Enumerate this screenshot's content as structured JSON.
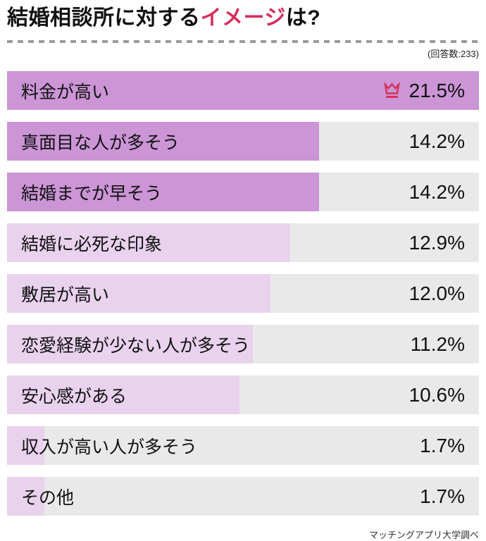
{
  "header": {
    "title_part1": "結婚相談所に対する",
    "title_highlight": "イメージ",
    "title_part2": "は?",
    "response_count": "(回答数:233)"
  },
  "footer": {
    "source": "マッチングアプリ大学調べ"
  },
  "colors": {
    "accent_red": "#d4305a",
    "bar_strong": "#cb95d6",
    "bar_light": "#e9d2ee",
    "track_gray": "#e9e9e9"
  },
  "icons": {
    "crown": "crown-icon"
  },
  "chart_data": {
    "type": "bar",
    "orientation": "horizontal",
    "title": "結婚相談所に対するイメージは?",
    "subtitle": "(回答数:233)",
    "unit": "%",
    "xlim": [
      0,
      21.5
    ],
    "grid": false,
    "legend": false,
    "categories": [
      "料金が高い",
      "真面目な人が多そう",
      "結婚までが早そう",
      "結婚に必死な印象",
      "敷居が高い",
      "恋愛経験が少ない人が多そう",
      "安心感がある",
      "収入が高い人が多そう",
      "その他"
    ],
    "values": [
      21.5,
      14.2,
      14.2,
      12.9,
      12.0,
      11.2,
      10.6,
      1.7,
      1.7
    ],
    "items": [
      {
        "label": "料金が高い",
        "value": 21.5,
        "display": "21.5%",
        "tone": "strong",
        "crown": true
      },
      {
        "label": "真面目な人が多そう",
        "value": 14.2,
        "display": "14.2%",
        "tone": "strong",
        "crown": false
      },
      {
        "label": "結婚までが早そう",
        "value": 14.2,
        "display": "14.2%",
        "tone": "strong",
        "crown": false
      },
      {
        "label": "結婚に必死な印象",
        "value": 12.9,
        "display": "12.9%",
        "tone": "light",
        "crown": false
      },
      {
        "label": "敷居が高い",
        "value": 12.0,
        "display": "12.0%",
        "tone": "light",
        "crown": false
      },
      {
        "label": "恋愛経験が少ない人が多そう",
        "value": 11.2,
        "display": "11.2%",
        "tone": "light",
        "crown": false
      },
      {
        "label": "安心感がある",
        "value": 10.6,
        "display": "10.6%",
        "tone": "light",
        "crown": false
      },
      {
        "label": "収入が高い人が多そう",
        "value": 1.7,
        "display": "1.7%",
        "tone": "light",
        "crown": false
      },
      {
        "label": "その他",
        "value": 1.7,
        "display": "1.7%",
        "tone": "light",
        "crown": false
      }
    ]
  }
}
